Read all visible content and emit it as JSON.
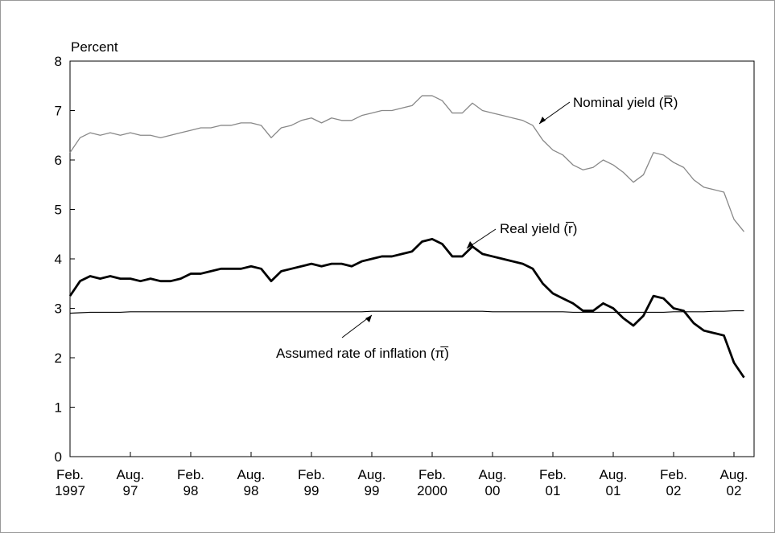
{
  "chart_data": {
    "type": "line",
    "y_label": "Percent",
    "x": [
      "1997-02",
      "1997-03",
      "1997-04",
      "1997-05",
      "1997-06",
      "1997-07",
      "1997-08",
      "1997-09",
      "1997-10",
      "1997-11",
      "1997-12",
      "1998-01",
      "1998-02",
      "1998-03",
      "1998-04",
      "1998-05",
      "1998-06",
      "1998-07",
      "1998-08",
      "1998-09",
      "1998-10",
      "1998-11",
      "1998-12",
      "1999-01",
      "1999-02",
      "1999-03",
      "1999-04",
      "1999-05",
      "1999-06",
      "1999-07",
      "1999-08",
      "1999-09",
      "1999-10",
      "1999-11",
      "1999-12",
      "2000-01",
      "2000-02",
      "2000-03",
      "2000-04",
      "2000-05",
      "2000-06",
      "2000-07",
      "2000-08",
      "2000-09",
      "2000-10",
      "2000-11",
      "2000-12",
      "2001-01",
      "2001-02",
      "2001-03",
      "2001-04",
      "2001-05",
      "2001-06",
      "2001-07",
      "2001-08",
      "2001-09",
      "2001-10",
      "2001-11",
      "2001-12",
      "2002-01",
      "2002-02",
      "2002-03",
      "2002-04",
      "2002-05",
      "2002-06",
      "2002-07",
      "2002-08",
      "2002-09"
    ],
    "series": [
      {
        "color": "#888888",
        "width": 1.3,
        "values": [
          6.15,
          6.45,
          6.55,
          6.5,
          6.55,
          6.5,
          6.55,
          6.5,
          6.5,
          6.45,
          6.5,
          6.55,
          6.6,
          6.65,
          6.65,
          6.7,
          6.7,
          6.75,
          6.75,
          6.7,
          6.45,
          6.65,
          6.7,
          6.8,
          6.85,
          6.75,
          6.85,
          6.8,
          6.8,
          6.9,
          6.95,
          7.0,
          7.0,
          7.05,
          7.1,
          7.3,
          7.3,
          7.2,
          6.95,
          6.95,
          7.15,
          7.0,
          6.95,
          6.9,
          6.85,
          6.8,
          6.7,
          6.4,
          6.2,
          6.1,
          5.9,
          5.8,
          5.85,
          6.0,
          5.9,
          5.75,
          5.55,
          5.7,
          6.15,
          6.1,
          5.95,
          5.85,
          5.6,
          5.45,
          5.4,
          5.35,
          4.8,
          4.55
        ]
      },
      {
        "color": "#000000",
        "width": 2.8,
        "values": [
          3.25,
          3.55,
          3.65,
          3.6,
          3.65,
          3.6,
          3.6,
          3.55,
          3.6,
          3.55,
          3.55,
          3.6,
          3.7,
          3.7,
          3.75,
          3.8,
          3.8,
          3.8,
          3.85,
          3.8,
          3.55,
          3.75,
          3.8,
          3.85,
          3.9,
          3.85,
          3.9,
          3.9,
          3.85,
          3.95,
          4.0,
          4.05,
          4.05,
          4.1,
          4.15,
          4.35,
          4.4,
          4.3,
          4.05,
          4.05,
          4.25,
          4.1,
          4.05,
          4.0,
          3.95,
          3.9,
          3.8,
          3.5,
          3.3,
          3.2,
          3.1,
          2.95,
          2.95,
          3.1,
          3.0,
          2.8,
          2.65,
          2.85,
          3.25,
          3.2,
          3.0,
          2.95,
          2.7,
          2.55,
          2.5,
          2.45,
          1.9,
          1.6
        ]
      },
      {
        "color": "#000000",
        "width": 1.2,
        "values": [
          2.9,
          2.91,
          2.92,
          2.92,
          2.92,
          2.92,
          2.93,
          2.93,
          2.93,
          2.93,
          2.93,
          2.93,
          2.93,
          2.93,
          2.93,
          2.93,
          2.93,
          2.93,
          2.93,
          2.93,
          2.93,
          2.93,
          2.93,
          2.93,
          2.93,
          2.93,
          2.93,
          2.93,
          2.93,
          2.93,
          2.94,
          2.94,
          2.94,
          2.94,
          2.94,
          2.94,
          2.94,
          2.94,
          2.94,
          2.94,
          2.94,
          2.94,
          2.93,
          2.93,
          2.93,
          2.93,
          2.93,
          2.93,
          2.93,
          2.93,
          2.92,
          2.92,
          2.92,
          2.92,
          2.92,
          2.92,
          2.92,
          2.92,
          2.92,
          2.92,
          2.93,
          2.93,
          2.93,
          2.93,
          2.94,
          2.94,
          2.95,
          2.95
        ]
      }
    ],
    "annotations": [
      "Nominal yield (R̅)",
      "Real yield (r̅)",
      "Assumed rate of inflation (π̅)"
    ],
    "xlim": [
      "1997-02",
      "2002-10"
    ],
    "xticks": [
      {
        "value": "1997-02",
        "label": [
          "Feb.",
          "1997"
        ]
      },
      {
        "value": "1997-08",
        "label": [
          "Aug.",
          "97"
        ]
      },
      {
        "value": "1998-02",
        "label": [
          "Feb.",
          "98"
        ]
      },
      {
        "value": "1998-08",
        "label": [
          "Aug.",
          "98"
        ]
      },
      {
        "value": "1999-02",
        "label": [
          "Feb.",
          "99"
        ]
      },
      {
        "value": "1999-08",
        "label": [
          "Aug.",
          "99"
        ]
      },
      {
        "value": "2000-02",
        "label": [
          "Feb.",
          "2000"
        ]
      },
      {
        "value": "2000-08",
        "label": [
          "Aug.",
          "00"
        ]
      },
      {
        "value": "2001-02",
        "label": [
          "Feb.",
          "01"
        ]
      },
      {
        "value": "2001-08",
        "label": [
          "Aug.",
          "01"
        ]
      },
      {
        "value": "2002-02",
        "label": [
          "Feb.",
          "02"
        ]
      },
      {
        "value": "2002-08",
        "label": [
          "Aug.",
          "02"
        ]
      }
    ],
    "ylim": [
      0,
      8
    ],
    "yticks": [
      0,
      1,
      2,
      3,
      4,
      5,
      6,
      7,
      8
    ],
    "grid": false
  }
}
